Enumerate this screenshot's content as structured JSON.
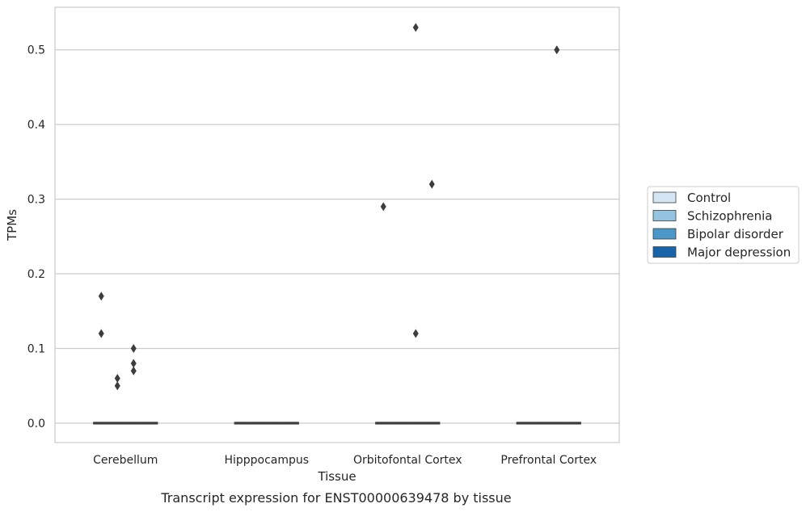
{
  "chart_data": {
    "type": "box",
    "caption": "Transcript expression for ENST00000639478 by tissue",
    "xlabel": "Tissue",
    "ylabel": "TPMs",
    "ylim": [
      -0.026,
      0.557
    ],
    "yticks": [
      0.0,
      0.1,
      0.2,
      0.3,
      0.4,
      0.5
    ],
    "ytick_labels": [
      "0.0",
      "0.1",
      "0.2",
      "0.3",
      "0.4",
      "0.5"
    ],
    "grid": "horizontal",
    "legend_position": "right",
    "categories": [
      "Cerebellum",
      "Hipppocampus",
      "Orbitofontal Cortex",
      "Prefrontal Cortex"
    ],
    "series": [
      {
        "name": "Control",
        "color": "#d4e5f4"
      },
      {
        "name": "Schizophrenia",
        "color": "#94c4df"
      },
      {
        "name": "Bipolar disorder",
        "color": "#4a98c9"
      },
      {
        "name": "Major depression",
        "color": "#1764ab"
      }
    ],
    "boxes": [
      {
        "category": "Cerebellum",
        "series": "Control",
        "median": 0,
        "outliers": [
          0.17,
          0.12
        ]
      },
      {
        "category": "Cerebellum",
        "series": "Schizophrenia",
        "median": 0,
        "outliers": [
          0.06,
          0.05
        ]
      },
      {
        "category": "Cerebellum",
        "series": "Bipolar disorder",
        "median": 0,
        "outliers": [
          0.1,
          0.08,
          0.07
        ]
      },
      {
        "category": "Cerebellum",
        "series": "Major depression",
        "median": 0,
        "outliers": []
      },
      {
        "category": "Hipppocampus",
        "series": "Control",
        "median": 0,
        "outliers": []
      },
      {
        "category": "Hipppocampus",
        "series": "Schizophrenia",
        "median": 0,
        "outliers": []
      },
      {
        "category": "Hipppocampus",
        "series": "Bipolar disorder",
        "median": 0,
        "outliers": []
      },
      {
        "category": "Hipppocampus",
        "series": "Major depression",
        "median": 0,
        "outliers": []
      },
      {
        "category": "Orbitofontal Cortex",
        "series": "Control",
        "median": 0,
        "outliers": [
          0.29
        ]
      },
      {
        "category": "Orbitofontal Cortex",
        "series": "Schizophrenia",
        "median": 0,
        "outliers": []
      },
      {
        "category": "Orbitofontal Cortex",
        "series": "Bipolar disorder",
        "median": 0,
        "outliers": [
          0.53,
          0.12
        ]
      },
      {
        "category": "Orbitofontal Cortex",
        "series": "Major depression",
        "median": 0,
        "outliers": [
          0.32
        ]
      },
      {
        "category": "Prefrontal Cortex",
        "series": "Control",
        "median": 0,
        "outliers": []
      },
      {
        "category": "Prefrontal Cortex",
        "series": "Schizophrenia",
        "median": 0,
        "outliers": []
      },
      {
        "category": "Prefrontal Cortex",
        "series": "Bipolar disorder",
        "median": 0,
        "outliers": [
          0.5
        ]
      },
      {
        "category": "Prefrontal Cortex",
        "series": "Major depression",
        "median": 0,
        "outliers": []
      }
    ]
  }
}
